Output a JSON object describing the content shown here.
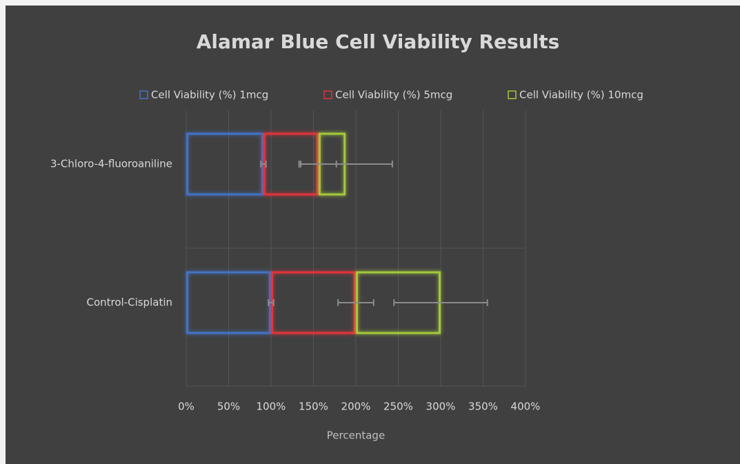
{
  "chart_data": {
    "type": "bar",
    "orientation": "horizontal",
    "stacked": true,
    "title": "Alamar Blue Cell Viability Results",
    "x_label": "Percentage",
    "categories": [
      "3-Chloro-4-fluoroaniline",
      "Control-Cisplatin"
    ],
    "series": [
      {
        "name": "Cell Viability (%) 1mcg",
        "color": "#4472c4",
        "values": [
          91,
          100
        ],
        "errors": [
          3,
          3
        ]
      },
      {
        "name": "Cell Viability (%) 5mcg",
        "color": "#e0343c",
        "values": [
          65,
          100
        ],
        "errors": [
          21,
          21
        ]
      },
      {
        "name": "Cell Viability (%) 10mcg",
        "color": "#a4c83c",
        "values": [
          32,
          100
        ],
        "errors": [
          55,
          55
        ]
      }
    ],
    "xlim": [
      0,
      400
    ],
    "xticks": [
      {
        "value": 0,
        "label": "0%"
      },
      {
        "value": 50,
        "label": "50%"
      },
      {
        "value": 100,
        "label": "100%"
      },
      {
        "value": 150,
        "label": "150%"
      },
      {
        "value": 200,
        "label": "200%"
      },
      {
        "value": 250,
        "label": "250%"
      },
      {
        "value": 300,
        "label": "300%"
      },
      {
        "value": 350,
        "label": "350%"
      },
      {
        "value": 400,
        "label": "400%"
      }
    ],
    "grid": true,
    "legend": "top"
  }
}
